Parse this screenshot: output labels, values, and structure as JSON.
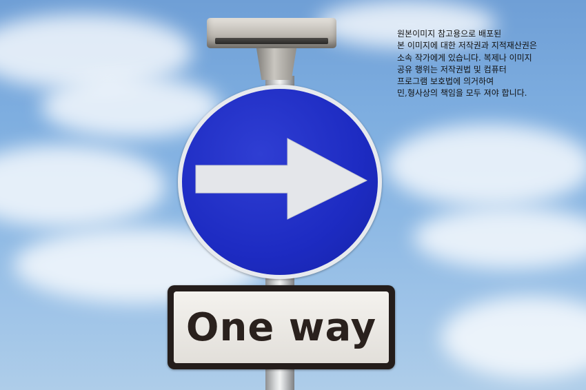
{
  "photo": {
    "description_icon": "one-way-road-sign",
    "colors": {
      "sky": "#7eaee0",
      "sign_blue": "#1d2bc2",
      "arrow": "#e4e6ea",
      "plate_border": "#241d1b"
    }
  },
  "plate": {
    "text": "One way"
  },
  "copyright_notice": {
    "lines": [
      "원본이미지 참고용으로 배포된",
      "본 이미지에 대한 저작권과 지적재산권은",
      "소속 작가에게 있습니다. 복제나 이미지",
      "공유 행위는 저작권법 및 컴퓨터",
      "프로그램 보호법에 의거하여",
      "민,형사상의 책임을 모두 져야 합니다."
    ]
  }
}
